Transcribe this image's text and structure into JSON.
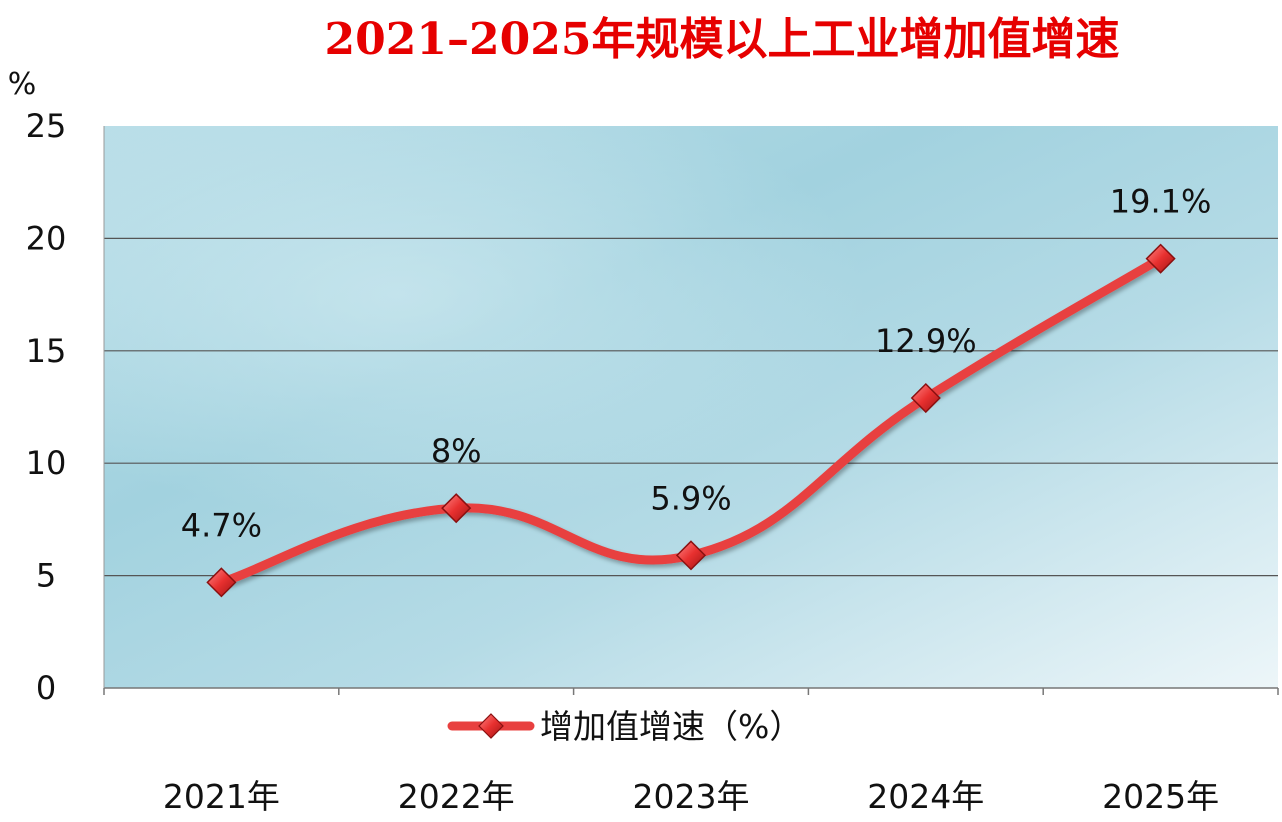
{
  "chart_data": {
    "type": "line",
    "title": "2021–2025年规模以上工业增加值增速",
    "ylabel": "%",
    "categories": [
      "2021年",
      "2022年",
      "2023年",
      "2024年",
      "2025年"
    ],
    "series": [
      {
        "name": "增加值增速（%）",
        "values": [
          4.7,
          8,
          5.9,
          12.9,
          19.1
        ],
        "labels": [
          "4.7%",
          "8%",
          "5.9%",
          "12.9%",
          "19.1%"
        ]
      }
    ],
    "ylim": [
      0,
      25
    ],
    "yticks": [
      "0",
      "5",
      "10",
      "15",
      "20",
      "25"
    ],
    "grid": true,
    "legend_position": "bottom",
    "colors": {
      "title": "#e60000",
      "line": "#e8403f",
      "marker": "#e8302f",
      "plot_bg_dark": "#9fcfdd",
      "plot_bg_light": "#e8f4f8",
      "grid": "#555555",
      "text": "#111111"
    }
  }
}
